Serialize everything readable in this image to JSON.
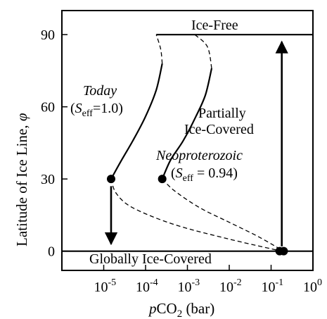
{
  "chart_data": {
    "type": "line",
    "x_scale": "log",
    "xlim": [
      1e-06,
      1
    ],
    "ylim": [
      -8,
      100
    ],
    "xlabel": {
      "italic": "p",
      "main": "CO",
      "sub": "2",
      "tail": " (bar)"
    },
    "ylabel": {
      "main": "Latitude of Ice Line, ",
      "italic": "φ"
    },
    "x_ticks": [
      {
        "value": 1e-05,
        "base": "10",
        "exp": "-5"
      },
      {
        "value": 0.0001,
        "base": "10",
        "exp": "-4"
      },
      {
        "value": 0.001,
        "base": "10",
        "exp": "-3"
      },
      {
        "value": 0.01,
        "base": "10",
        "exp": "-2"
      },
      {
        "value": 0.1,
        "base": "10",
        "exp": "-1"
      },
      {
        "value": 1,
        "base": "10",
        "exp": "0"
      }
    ],
    "y_ticks": [
      {
        "value": 0,
        "label": "0"
      },
      {
        "value": 30,
        "label": "30"
      },
      {
        "value": 60,
        "label": "60"
      },
      {
        "value": 90,
        "label": "90"
      }
    ],
    "grid": false,
    "series": [
      {
        "stable": [
          [
            1.5e-05,
            30
          ],
          [
            2.5e-05,
            37
          ],
          [
            5e-05,
            46
          ],
          [
            0.0001,
            56
          ],
          [
            0.00018,
            67
          ],
          [
            0.00025,
            78
          ]
        ],
        "unstable_upper": [
          [
            0.00025,
            78
          ],
          [
            0.00023,
            84
          ],
          [
            0.00018,
            90
          ]
        ],
        "unstable_lower": [
          [
            1.5e-05,
            30
          ],
          [
            2e-05,
            24
          ],
          [
            5e-05,
            18
          ],
          [
            0.0005,
            11
          ],
          [
            0.01,
            5
          ],
          [
            0.18,
            0
          ]
        ]
      },
      {
        "stable": [
          [
            0.00025,
            30
          ],
          [
            0.0004,
            38
          ],
          [
            0.0008,
            46
          ],
          [
            0.0016,
            56
          ],
          [
            0.0027,
            65
          ],
          [
            0.0038,
            76
          ]
        ],
        "unstable_upper": [
          [
            0.0038,
            76
          ],
          [
            0.003,
            85
          ],
          [
            0.0015,
            90
          ]
        ],
        "unstable_lower": [
          [
            0.00025,
            30
          ],
          [
            0.0005,
            25
          ],
          [
            0.002,
            18
          ],
          [
            0.01,
            12
          ],
          [
            0.05,
            6
          ],
          [
            0.2,
            0
          ]
        ]
      }
    ],
    "points": [
      {
        "x": 1.5e-05,
        "y": 30
      },
      {
        "x": 0.00025,
        "y": 30
      },
      {
        "x": 0.16,
        "y": 0
      },
      {
        "x": 0.2,
        "y": 0
      }
    ],
    "reference_lines": [
      {
        "y": 90,
        "x_from": 0.00018,
        "x_to": 1
      },
      {
        "y": 0,
        "x_from": 1e-06,
        "x_to": 1
      }
    ],
    "arrows": [
      {
        "x": 1.5e-05,
        "y_from": 27,
        "y_to": 3
      },
      {
        "x": 0.18,
        "y_from": 2,
        "y_to": 87
      }
    ],
    "annotations": {
      "ice_free": "Ice-Free",
      "globally_ice_covered": "Globally Ice-Covered",
      "partially_line1": "Partially",
      "partially_line2": "Ice-Covered",
      "today_name": "Today",
      "today_param": {
        "open": "(",
        "sym": "S",
        "sub": "eff",
        "eq": "=1.0)"
      },
      "neo_name": "Neoproterozoic",
      "neo_param": {
        "open": "(",
        "sym": "S",
        "sub": "eff",
        "eq": " = 0.94)"
      }
    }
  }
}
